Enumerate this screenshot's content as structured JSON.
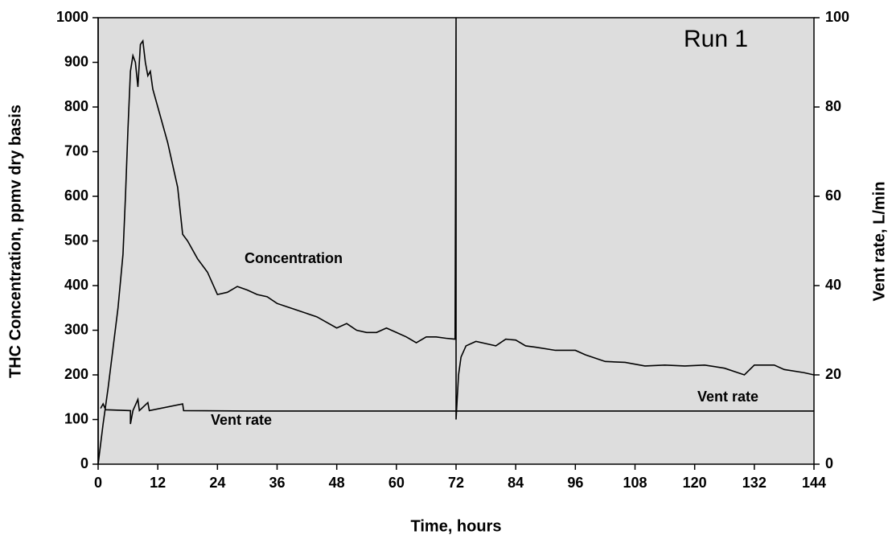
{
  "chart_data": {
    "type": "line",
    "annotation": "Run 1",
    "x_label": "Time, hours",
    "y_label": "THC Concentration, ppmv dry basis",
    "y2_label": "Vent rate, L/min",
    "xlim": [
      0,
      144
    ],
    "xticks": [
      0,
      12,
      24,
      36,
      48,
      60,
      72,
      84,
      96,
      108,
      120,
      132,
      144
    ],
    "ylim": [
      0,
      1000
    ],
    "yticks": [
      0,
      100,
      200,
      300,
      400,
      500,
      600,
      700,
      800,
      900,
      1000
    ],
    "y2lim": [
      0,
      100
    ],
    "y2ticks": [
      0,
      20,
      40,
      60,
      80,
      100
    ],
    "background": "#dddddd",
    "series": [
      {
        "name": "Concentration",
        "color": "#000000",
        "x": [
          0,
          0,
          1,
          2,
          3,
          4,
          5,
          5.5,
          6,
          6.5,
          7,
          7.5,
          8,
          8.5,
          9,
          9.5,
          10,
          10.5,
          11,
          12,
          14,
          16,
          17,
          18,
          20,
          22,
          24,
          26,
          28,
          30,
          32,
          34,
          36,
          40,
          44,
          48,
          50,
          52,
          54,
          56,
          58,
          60,
          62,
          64,
          66,
          68,
          70,
          71.8,
          72,
          72,
          72.5,
          73,
          74,
          76,
          78,
          80,
          82,
          84,
          86,
          88,
          92,
          96,
          98,
          102,
          106,
          110,
          114,
          118,
          122,
          126,
          130,
          132,
          136,
          138,
          142,
          144
        ],
        "values": [
          1000,
          0,
          90,
          170,
          260,
          350,
          470,
          600,
          750,
          880,
          915,
          900,
          845,
          940,
          948,
          900,
          870,
          880,
          840,
          800,
          720,
          620,
          515,
          500,
          460,
          430,
          380,
          385,
          398,
          390,
          380,
          375,
          360,
          345,
          330,
          305,
          315,
          300,
          295,
          295,
          305,
          295,
          285,
          272,
          285,
          285,
          282,
          280,
          1000,
          100,
          200,
          240,
          265,
          275,
          270,
          265,
          280,
          278,
          265,
          262,
          255,
          255,
          245,
          230,
          228,
          220,
          222,
          220,
          222,
          215,
          200,
          222,
          222,
          212,
          205,
          200
        ]
      },
      {
        "name": "Vent rate",
        "color": "#000000",
        "axis": "y2",
        "x": [
          0.5,
          1,
          1.5,
          6.5,
          6.5,
          7,
          8,
          8.3,
          10,
          10.3,
          17,
          17.2,
          30,
          60,
          71.8,
          144
        ],
        "values": [
          12.5,
          13.5,
          12.2,
          12,
          9,
          12,
          14.5,
          12,
          13.8,
          12,
          13.5,
          12,
          11.9,
          11.9,
          11.9,
          11.9
        ]
      }
    ]
  }
}
